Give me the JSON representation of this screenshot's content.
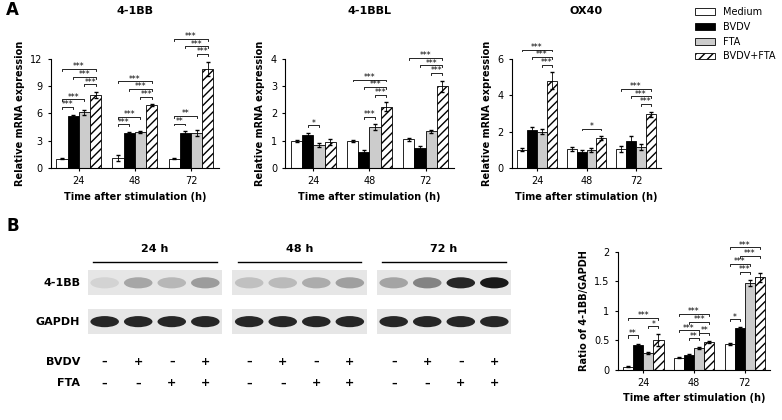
{
  "panel_labels": [
    "A",
    "B"
  ],
  "chart_data": [
    {
      "type": "bar",
      "title": "4-1BB",
      "x_label": "Time after stimulation (h)",
      "y_label": "Relative mRNA expression",
      "categories": [
        "24",
        "48",
        "72"
      ],
      "ylim": [
        0,
        12
      ],
      "yticks": [
        0,
        3,
        6,
        9,
        12
      ],
      "series": [
        {
          "name": "Medium",
          "color": "#ffffff",
          "values": [
            1.0,
            1.1,
            1.0
          ],
          "errors": [
            0.05,
            0.35,
            0.05
          ]
        },
        {
          "name": "BVDV",
          "color": "#000000",
          "values": [
            5.7,
            3.85,
            3.8
          ],
          "errors": [
            0.15,
            0.1,
            0.25
          ]
        },
        {
          "name": "FTA",
          "color": "#cccccc",
          "values": [
            6.1,
            3.95,
            3.85
          ],
          "errors": [
            0.3,
            0.1,
            0.3
          ]
        },
        {
          "name": "BVDV+FTA",
          "color": "#ffffff",
          "values": [
            8.0,
            6.9,
            10.9
          ],
          "errors": [
            0.35,
            0.1,
            0.8
          ]
        }
      ],
      "significance": [
        {
          "group": 0,
          "from": 0,
          "to": 1,
          "label": "***"
        },
        {
          "group": 0,
          "from": 0,
          "to": 2,
          "label": "***"
        },
        {
          "group": 0,
          "from": 0,
          "to": 3,
          "label": "***"
        },
        {
          "group": 0,
          "from": 1,
          "to": 3,
          "label": "***"
        },
        {
          "group": 0,
          "from": 2,
          "to": 3,
          "label": "***"
        },
        {
          "group": 1,
          "from": 0,
          "to": 1,
          "label": "***"
        },
        {
          "group": 1,
          "from": 0,
          "to": 2,
          "label": "***"
        },
        {
          "group": 1,
          "from": 0,
          "to": 3,
          "label": "***"
        },
        {
          "group": 1,
          "from": 1,
          "to": 3,
          "label": "***"
        },
        {
          "group": 1,
          "from": 2,
          "to": 3,
          "label": "***"
        },
        {
          "group": 2,
          "from": 0,
          "to": 1,
          "label": "**"
        },
        {
          "group": 2,
          "from": 0,
          "to": 2,
          "label": "**"
        },
        {
          "group": 2,
          "from": 0,
          "to": 3,
          "label": "***"
        },
        {
          "group": 2,
          "from": 1,
          "to": 3,
          "label": "***"
        },
        {
          "group": 2,
          "from": 2,
          "to": 3,
          "label": "***"
        }
      ]
    },
    {
      "type": "bar",
      "title": "4-1BBL",
      "x_label": "Time after stimulation (h)",
      "y_label": "Relative mRNA expression",
      "categories": [
        "24",
        "48",
        "72"
      ],
      "ylim": [
        0,
        4
      ],
      "yticks": [
        0,
        1,
        2,
        3,
        4
      ],
      "series": [
        {
          "name": "Medium",
          "color": "#ffffff",
          "values": [
            1.0,
            1.0,
            1.05
          ],
          "errors": [
            0.04,
            0.03,
            0.05
          ]
        },
        {
          "name": "BVDV",
          "color": "#000000",
          "values": [
            1.22,
            0.6,
            0.72
          ],
          "errors": [
            0.06,
            0.06,
            0.07
          ]
        },
        {
          "name": "FTA",
          "color": "#cccccc",
          "values": [
            0.85,
            1.5,
            1.35
          ],
          "errors": [
            0.07,
            0.1,
            0.06
          ]
        },
        {
          "name": "BVDV+FTA",
          "color": "#ffffff",
          "values": [
            0.95,
            2.25,
            3.0
          ],
          "errors": [
            0.1,
            0.15,
            0.2
          ]
        }
      ],
      "significance": [
        {
          "group": 0,
          "from": 1,
          "to": 2,
          "label": "*"
        },
        {
          "group": 1,
          "from": 0,
          "to": 3,
          "label": "***"
        },
        {
          "group": 1,
          "from": 1,
          "to": 3,
          "label": "***"
        },
        {
          "group": 1,
          "from": 2,
          "to": 3,
          "label": "***"
        },
        {
          "group": 1,
          "from": 1,
          "to": 2,
          "label": "***"
        },
        {
          "group": 2,
          "from": 0,
          "to": 3,
          "label": "***"
        },
        {
          "group": 2,
          "from": 1,
          "to": 3,
          "label": "***"
        },
        {
          "group": 2,
          "from": 2,
          "to": 3,
          "label": "***"
        }
      ]
    },
    {
      "type": "bar",
      "title": "OX40",
      "x_label": "Time after stimulation (h)",
      "y_label": "Relative mRNA expression",
      "categories": [
        "24",
        "48",
        "72"
      ],
      "ylim": [
        0,
        6
      ],
      "yticks": [
        0,
        2,
        4,
        6
      ],
      "legend": "upper right",
      "series": [
        {
          "name": "Medium",
          "color": "#ffffff",
          "values": [
            1.0,
            1.05,
            1.05
          ],
          "errors": [
            0.08,
            0.12,
            0.15
          ]
        },
        {
          "name": "BVDV",
          "color": "#000000",
          "values": [
            2.1,
            0.88,
            1.5
          ],
          "errors": [
            0.15,
            0.12,
            0.25
          ]
        },
        {
          "name": "FTA",
          "color": "#cccccc",
          "values": [
            2.0,
            1.0,
            1.15
          ],
          "errors": [
            0.15,
            0.12,
            0.15
          ]
        },
        {
          "name": "BVDV+FTA",
          "color": "#ffffff",
          "values": [
            4.8,
            1.65,
            2.95
          ],
          "errors": [
            0.45,
            0.1,
            0.15
          ]
        }
      ],
      "significance": [
        {
          "group": 0,
          "from": 0,
          "to": 3,
          "label": "***"
        },
        {
          "group": 0,
          "from": 1,
          "to": 3,
          "label": "***"
        },
        {
          "group": 0,
          "from": 2,
          "to": 3,
          "label": "***"
        },
        {
          "group": 1,
          "from": 1,
          "to": 3,
          "label": "*"
        },
        {
          "group": 2,
          "from": 0,
          "to": 3,
          "label": "***"
        },
        {
          "group": 2,
          "from": 1,
          "to": 3,
          "label": "***"
        },
        {
          "group": 2,
          "from": 2,
          "to": 3,
          "label": "***"
        }
      ]
    },
    {
      "type": "bar",
      "x_label": "Time after stimulation (h)",
      "y_label": "Ratio of 4-1BB/GAPDH",
      "categories": [
        "24",
        "48",
        "72"
      ],
      "ylim": [
        0,
        2
      ],
      "yticks": [
        0,
        0.5,
        1,
        1.5,
        2
      ],
      "series": [
        {
          "name": "Medium",
          "color": "#ffffff",
          "values": [
            0.05,
            0.2,
            0.43
          ],
          "errors": [
            0.01,
            0.01,
            0.02
          ]
        },
        {
          "name": "BVDV",
          "color": "#000000",
          "values": [
            0.42,
            0.25,
            0.7
          ],
          "errors": [
            0.02,
            0.02,
            0.02
          ]
        },
        {
          "name": "FTA",
          "color": "#cccccc",
          "values": [
            0.28,
            0.37,
            1.47
          ],
          "errors": [
            0.02,
            0.02,
            0.05
          ]
        },
        {
          "name": "BVDV+FTA",
          "color": "#ffffff",
          "values": [
            0.5,
            0.47,
            1.57
          ],
          "errors": [
            0.1,
            0.02,
            0.08
          ]
        }
      ],
      "significance": [
        {
          "group": 0,
          "from": 0,
          "to": 1,
          "label": "**"
        },
        {
          "group": 0,
          "from": 2,
          "to": 3,
          "label": "*"
        },
        {
          "group": 0,
          "from": 0,
          "to": 3,
          "label": "***"
        },
        {
          "group": 1,
          "from": 0,
          "to": 3,
          "label": "***"
        },
        {
          "group": 1,
          "from": 1,
          "to": 3,
          "label": "***"
        },
        {
          "group": 1,
          "from": 0,
          "to": 2,
          "label": "***"
        },
        {
          "group": 1,
          "from": 1,
          "to": 2,
          "label": "**"
        },
        {
          "group": 1,
          "from": 2,
          "to": 3,
          "label": "**"
        },
        {
          "group": 2,
          "from": 0,
          "to": 1,
          "label": "*"
        },
        {
          "group": 2,
          "from": 0,
          "to": 2,
          "label": "***"
        },
        {
          "group": 2,
          "from": 1,
          "to": 2,
          "label": "***"
        },
        {
          "group": 2,
          "from": 0,
          "to": 3,
          "label": "***"
        },
        {
          "group": 2,
          "from": 1,
          "to": 3,
          "label": "***"
        }
      ]
    }
  ],
  "blot": {
    "time_labels": [
      "24 h",
      "48 h",
      "72 h"
    ],
    "rows": [
      "4-1BB",
      "GAPDH"
    ],
    "treatments": [
      {
        "name": "BVDV",
        "signs": [
          "–",
          "+",
          "–",
          "+"
        ]
      },
      {
        "name": "FTA",
        "signs": [
          "–",
          "–",
          "+",
          "+"
        ]
      }
    ]
  }
}
